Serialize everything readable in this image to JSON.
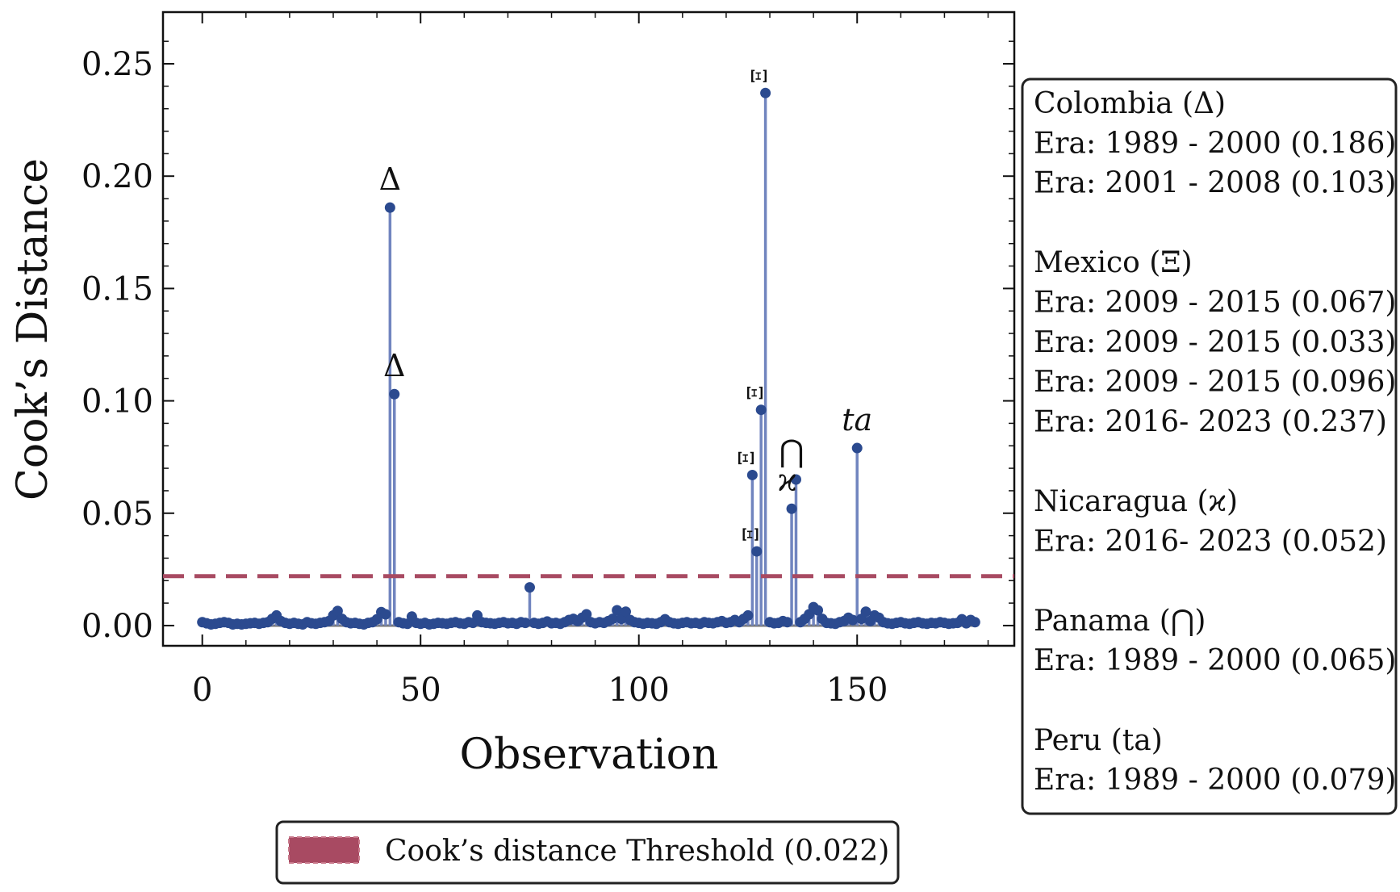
{
  "chart_data": {
    "type": "stem",
    "ylabel": "Cook’s Distance",
    "xlabel": "Observation",
    "xlim": [
      -9,
      186
    ],
    "ylim": [
      -0.009,
      0.273
    ],
    "xticks": [
      0,
      50,
      100,
      150
    ],
    "xtick_labels": [
      "0",
      "50",
      "100",
      "150"
    ],
    "yticks": [
      0.0,
      0.05,
      0.1,
      0.15,
      0.2,
      0.25
    ],
    "ytick_labels": [
      "0.00",
      "0.05",
      "0.10",
      "0.15",
      "0.20",
      "0.25"
    ],
    "grid": false,
    "threshold": {
      "value": 0.022,
      "label": "Cook’s distance Threshold (0.022)",
      "color": "#a84a62",
      "style": "dashed"
    },
    "series": [
      {
        "color": "#2b4a8f",
        "x": [
          0,
          1,
          2,
          3,
          4,
          5,
          6,
          7,
          8,
          9,
          10,
          11,
          12,
          13,
          14,
          15,
          16,
          17,
          18,
          19,
          20,
          21,
          22,
          23,
          24,
          25,
          26,
          27,
          28,
          29,
          30,
          31,
          32,
          33,
          34,
          35,
          36,
          37,
          38,
          39,
          40,
          41,
          42,
          43,
          44,
          45,
          46,
          47,
          48,
          49,
          50,
          51,
          52,
          53,
          54,
          55,
          56,
          57,
          58,
          59,
          60,
          61,
          62,
          63,
          64,
          65,
          66,
          67,
          68,
          69,
          70,
          71,
          72,
          73,
          74,
          75,
          76,
          77,
          78,
          79,
          80,
          81,
          82,
          83,
          84,
          85,
          86,
          87,
          88,
          89,
          90,
          91,
          92,
          93,
          94,
          95,
          96,
          97,
          98,
          99,
          100,
          101,
          102,
          103,
          104,
          105,
          106,
          107,
          108,
          109,
          110,
          111,
          112,
          113,
          114,
          115,
          116,
          117,
          118,
          119,
          120,
          121,
          122,
          123,
          124,
          125,
          126,
          127,
          128,
          129,
          130,
          131,
          132,
          133,
          134,
          135,
          136,
          137,
          138,
          139,
          140,
          141,
          142,
          143,
          144,
          145,
          146,
          147,
          148,
          149,
          150,
          151,
          152,
          153,
          154,
          155,
          156,
          157,
          158,
          159,
          160,
          161,
          162,
          163,
          164,
          165,
          166,
          167,
          168,
          169,
          170,
          171,
          172,
          173,
          174,
          175,
          176,
          177
        ],
        "y": [
          0.0015,
          0.001,
          0.0005,
          0.0008,
          0.0012,
          0.0015,
          0.0012,
          0.0005,
          0.0008,
          0.0005,
          0.0008,
          0.001,
          0.0012,
          0.0008,
          0.0012,
          0.0015,
          0.003,
          0.0045,
          0.002,
          0.0012,
          0.0008,
          0.0012,
          0.0008,
          0.0005,
          0.0015,
          0.001,
          0.0008,
          0.0012,
          0.0015,
          0.002,
          0.0045,
          0.0065,
          0.003,
          0.0015,
          0.001,
          0.0012,
          0.0008,
          0.0005,
          0.0012,
          0.0015,
          0.0028,
          0.006,
          0.005,
          0.186,
          0.103,
          0.0015,
          0.001,
          0.0008,
          0.004,
          0.0012,
          0.0008,
          0.0012,
          0.0005,
          0.0008,
          0.0012,
          0.001,
          0.0008,
          0.0012,
          0.0015,
          0.001,
          0.0008,
          0.0015,
          0.0012,
          0.0045,
          0.0015,
          0.0012,
          0.001,
          0.0008,
          0.0012,
          0.0015,
          0.001,
          0.0012,
          0.0008,
          0.0015,
          0.0012,
          0.017,
          0.0012,
          0.0008,
          0.0012,
          0.0018,
          0.001,
          0.0012,
          0.0008,
          0.0015,
          0.0025,
          0.003,
          0.002,
          0.0035,
          0.005,
          0.0015,
          0.001,
          0.0015,
          0.0012,
          0.002,
          0.003,
          0.0068,
          0.003,
          0.0062,
          0.0025,
          0.0015,
          0.0012,
          0.0008,
          0.0012,
          0.001,
          0.0008,
          0.0015,
          0.0028,
          0.0015,
          0.001,
          0.0008,
          0.0012,
          0.0015,
          0.001,
          0.0012,
          0.0008,
          0.0015,
          0.0012,
          0.001,
          0.0015,
          0.002,
          0.0012,
          0.0015,
          0.0025,
          0.0015,
          0.003,
          0.0045,
          0.067,
          0.033,
          0.096,
          0.237,
          0.0015,
          0.001,
          0.0012,
          0.002,
          0.0015,
          0.052,
          0.065,
          0.0015,
          0.003,
          0.005,
          0.0082,
          0.0068,
          0.003,
          0.0012,
          0.001,
          0.0008,
          0.0015,
          0.002,
          0.0035,
          0.0025,
          0.079,
          0.003,
          0.0062,
          0.002,
          0.0045,
          0.0035,
          0.0015,
          0.001,
          0.0008,
          0.0012,
          0.0015,
          0.001,
          0.0008,
          0.0012,
          0.0015,
          0.001,
          0.0008,
          0.0012,
          0.001,
          0.0015,
          0.0012,
          0.0008,
          0.001,
          0.0012,
          0.0028,
          0.001,
          0.0025,
          0.0015
        ]
      }
    ],
    "annotations": [
      {
        "x": 43,
        "y": 0.186,
        "text": "Δ",
        "style": "large"
      },
      {
        "x": 44,
        "y": 0.103,
        "text": "Δ",
        "style": "large"
      },
      {
        "x": 125,
        "y": 0.067,
        "text": "Ξ",
        "style": "small-rotated"
      },
      {
        "x": 126,
        "y": 0.033,
        "text": "Ξ",
        "style": "small-rotated"
      },
      {
        "x": 127,
        "y": 0.096,
        "text": "Ξ",
        "style": "small-rotated"
      },
      {
        "x": 128,
        "y": 0.237,
        "text": "Ξ",
        "style": "small-rotated"
      },
      {
        "x": 134,
        "y": 0.052,
        "text": "ϰ",
        "style": "large"
      },
      {
        "x": 135,
        "y": 0.065,
        "text": "⋂",
        "style": "large"
      },
      {
        "x": 150,
        "y": 0.079,
        "text": "ta",
        "style": "italic"
      }
    ]
  },
  "info_box": {
    "lines": [
      "Colombia (Δ)",
      "Era:  1989 - 2000 (0.186)",
      "Era:  2001 - 2008 (0.103)",
      "",
      "Mexico (Ξ)",
      "Era:  2009 - 2015 (0.067)",
      "Era:  2009 - 2015 (0.033)",
      "Era:  2009 - 2015 (0.096)",
      "Era:  2016- 2023 (0.237)",
      "",
      "Nicaragua (ϰ)",
      "Era:  2016- 2023 (0.052)",
      "",
      "Panama (⋂)",
      "Era:  1989 - 2000 (0.065)",
      "",
      "Peru (ta)",
      "Era:  1989 - 2000 (0.079)"
    ]
  },
  "legend": {
    "label": "Cook’s distance Threshold (0.022)"
  }
}
